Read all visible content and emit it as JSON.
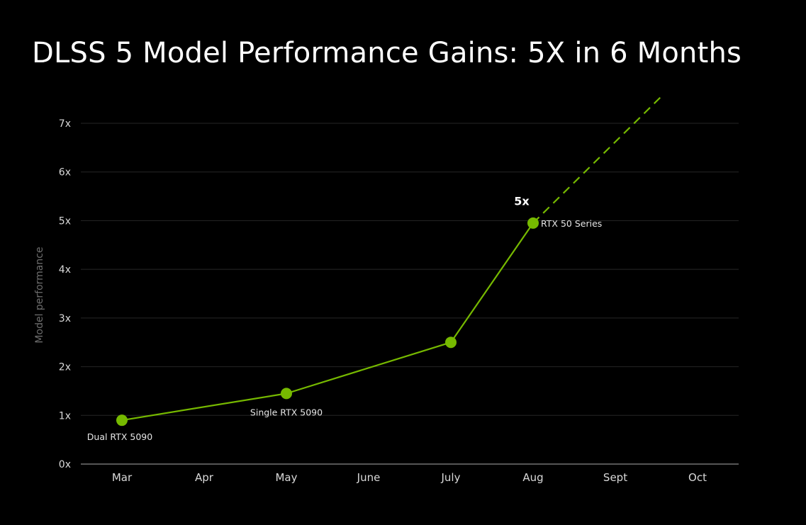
{
  "title": "DLSS 5 Model Performance Gains: 5X in 6 Months",
  "chart_data": {
    "type": "line",
    "title": "DLSS 5 Model Performance Gains: 5X in 6 Months",
    "xlabel": "",
    "ylabel": "Model performance",
    "categories": [
      "Mar",
      "Apr",
      "May",
      "June",
      "July",
      "Aug",
      "Sept",
      "Oct"
    ],
    "yticks": [
      "0x",
      "1x",
      "2x",
      "3x",
      "4x",
      "5x",
      "6x",
      "7x"
    ],
    "ylim": [
      0,
      7
    ],
    "grid": true,
    "series": [
      {
        "color": "#76b900",
        "points": [
          {
            "x": "Mar",
            "y": 0.9,
            "label": "Dual RTX 5090"
          },
          {
            "x": "May",
            "y": 1.45,
            "label": "Single RTX 5090"
          },
          {
            "x": "July",
            "y": 2.5,
            "label": ""
          },
          {
            "x": "Aug",
            "y": 4.95,
            "label": "RTX 50 Series"
          }
        ]
      }
    ],
    "projection": {
      "style": "dashed",
      "from": {
        "x": "Aug",
        "y": 4.95
      },
      "direction": "continues upward past 7x toward Sept"
    },
    "annotations": [
      {
        "text": "5x",
        "x": "Aug",
        "y": 5
      }
    ]
  }
}
